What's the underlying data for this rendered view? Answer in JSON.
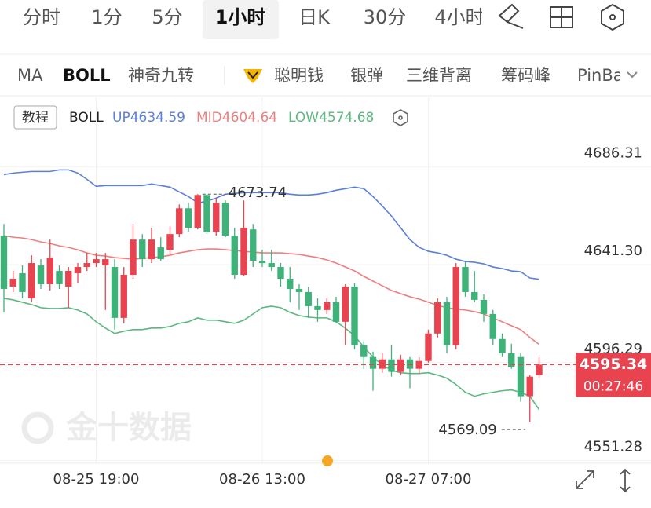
{
  "tabs": [
    "分时",
    "1分",
    "5分",
    "1小时",
    "日K",
    "30分",
    "4小时"
  ],
  "indicators": [
    "MA",
    "BOLL",
    "神奇九转",
    "聪明钱",
    "银弹",
    "三维背离",
    "筹码峰",
    "PinBar"
  ],
  "legend_button": "教程",
  "watermark": "金十数据",
  "countdown": "00:27:46",
  "chart_data": {
    "type": "candlestick",
    "categories": [
      null,
      null,
      null,
      null,
      null,
      null,
      null,
      null,
      null,
      null,
      "08-25 19:00",
      null,
      null,
      null,
      null,
      null,
      null,
      null,
      null,
      null,
      null,
      null,
      null,
      null,
      null,
      null,
      null,
      null,
      "08-26 13:00",
      null,
      null,
      null,
      null,
      null,
      null,
      null,
      null,
      null,
      null,
      null,
      null,
      null,
      null,
      null,
      null,
      null,
      "08-27 07:00",
      null,
      null,
      null,
      null,
      null,
      null,
      null,
      null,
      null,
      null,
      null,
      null
    ],
    "open": [
      4654.63,
      4631.23,
      4637.35,
      4625.83,
      4640.95,
      4632.31,
      4638.43,
      4631.23,
      4637.35,
      4640.23,
      4642.03,
      4640.95,
      4640.23,
      4616.83,
      4636.63,
      4652.83,
      4643.83,
      4649.23,
      4648.15,
      4655.35,
      4667.23,
      4658.23,
      4673.35,
      4656.43,
      4669.75,
      4654.63,
      4636.63,
      4657.51,
      4643.11,
      4642.03,
      4640.23,
      4634.83,
      4630.15,
      4628.71,
      4622.23,
      4620.43,
      4624.03,
      4615.03,
      4631.23,
      4604.23,
      4598.83,
      4593.43,
      4597.75,
      4591.99,
      4597.75,
      4593.43,
      4597.03,
      4609.63,
      4624.03,
      4604.23,
      4640.23,
      4628.71,
      4625.11,
      4618.63,
      4607.11,
      4600.63,
      4598.83,
      4580.83,
      4590.55
    ],
    "high": [
      4660.03,
      4638.43,
      4640.95,
      4645.63,
      4643.83,
      4652.83,
      4640.95,
      4640.23,
      4642.03,
      4646.71,
      4646.71,
      4646.71,
      4643.83,
      4640.23,
      4660.03,
      4655.35,
      4658.23,
      4653.91,
      4658.95,
      4669.03,
      4669.75,
      4673.74,
      4673.6,
      4671.91,
      4670.83,
      4658.23,
      4670.83,
      4660.03,
      4648.15,
      4648.15,
      4642.03,
      4640.23,
      4632.31,
      4631.23,
      4625.83,
      4625.83,
      4626.55,
      4632.31,
      4633.03,
      4606.03,
      4601.35,
      4600.63,
      4604.23,
      4599.91,
      4598.83,
      4598.83,
      4611.43,
      4625.83,
      4626.55,
      4642.03,
      4643.11,
      4638.43,
      4627.63,
      4620.43,
      4609.63,
      4604.95,
      4600.63,
      4590.55,
      4598.83
    ],
    "low": [
      4619.35,
      4628.71,
      4625.83,
      4624.03,
      4630.15,
      4629.43,
      4630.15,
      4621.51,
      4633.03,
      4638.43,
      4640.23,
      4620.43,
      4611.43,
      4614.31,
      4634.83,
      4640.23,
      4642.03,
      4643.11,
      4645.63,
      4653.91,
      4656.43,
      4657.51,
      4655.35,
      4654.63,
      4653.91,
      4634.83,
      4635.91,
      4640.23,
      4640.23,
      4638.43,
      4631.23,
      4624.03,
      4620.43,
      4616.83,
      4615.03,
      4618.63,
      4614.31,
      4604.23,
      4602.43,
      4593.43,
      4583.35,
      4591.63,
      4589.83,
      4590.55,
      4584.43,
      4591.63,
      4596.31,
      4607.83,
      4600.63,
      4602.43,
      4626.55,
      4624.03,
      4615.03,
      4604.23,
      4598.83,
      4593.43,
      4578.31,
      4569.09,
      4589.11
    ],
    "close": [
      4630.15,
      4634.83,
      4628.71,
      4642.03,
      4632.31,
      4644.55,
      4632.31,
      4638.43,
      4640.23,
      4642.03,
      4643.83,
      4643.83,
      4616.83,
      4636.63,
      4652.83,
      4643.83,
      4652.83,
      4643.83,
      4655.35,
      4667.23,
      4658.23,
      4673.35,
      4656.43,
      4669.75,
      4654.63,
      4636.63,
      4658.23,
      4643.11,
      4642.03,
      4640.23,
      4634.83,
      4630.15,
      4628.71,
      4622.23,
      4620.43,
      4624.03,
      4615.03,
      4631.23,
      4604.23,
      4598.83,
      4593.43,
      4597.75,
      4591.99,
      4597.75,
      4593.43,
      4597.03,
      4609.63,
      4624.03,
      4604.23,
      4640.23,
      4628.71,
      4625.11,
      4618.63,
      4607.11,
      4600.63,
      4594.15,
      4580.83,
      4589.83,
      4595.34
    ],
    "up_color": "#e8434f",
    "down_color": "#3fb27a",
    "series": [
      {
        "name": "UP",
        "color": "#5b80d9",
        "values": [
          4682.71,
          4683.43,
          4683.79,
          4684.15,
          4684.15,
          4684.15,
          4684.87,
          4684.87,
          4683.43,
          4680.55,
          4677.31,
          4677.67,
          4677.67,
          4677.67,
          4677.67,
          4677.67,
          4678.39,
          4677.67,
          4676.95,
          4674.79,
          4672.63,
          4669.75,
          4670.47,
          4671.91,
          4673.71,
          4674.07,
          4674.43,
          4674.43,
          4674.43,
          4674.43,
          4674.43,
          4673.71,
          4673.35,
          4673.35,
          4673.71,
          4674.43,
          4675.51,
          4676.23,
          4676.95,
          4676.23,
          4672.63,
          4668.31,
          4663.63,
          4658.23,
          4652.83,
          4649.23,
          4647.43,
          4646.71,
          4645.63,
          4643.83,
          4642.75,
          4642.39,
          4641.67,
          4640.23,
          4639.51,
          4638.43,
          4638.07,
          4635.19,
          4634.59
        ]
      },
      {
        "name": "MID",
        "color": "#ef7f7f",
        "values": [
          4654.63,
          4653.91,
          4653.55,
          4652.83,
          4651.75,
          4651.03,
          4649.95,
          4649.23,
          4648.15,
          4646.71,
          4645.63,
          4645.27,
          4644.55,
          4644.19,
          4643.83,
          4644.19,
          4644.55,
          4644.91,
          4645.63,
          4646.71,
          4647.43,
          4648.15,
          4648.51,
          4648.51,
          4648.15,
          4647.79,
          4647.43,
          4647.07,
          4646.71,
          4646.71,
          4646.71,
          4646.35,
          4645.99,
          4645.27,
          4644.55,
          4643.47,
          4642.03,
          4640.23,
          4638.43,
          4635.91,
          4633.75,
          4631.59,
          4629.43,
          4627.99,
          4626.55,
          4625.47,
          4624.03,
          4622.59,
          4621.51,
          4620.79,
          4620.43,
          4619.71,
          4618.63,
          4616.83,
          4615.03,
          4613.23,
          4611.43,
          4607.83,
          4604.64
        ]
      },
      {
        "name": "LOW",
        "color": "#5cb880",
        "values": [
          4625.83,
          4625.11,
          4624.03,
          4622.95,
          4621.51,
          4621.15,
          4621.15,
          4621.51,
          4620.43,
          4618.63,
          4615.03,
          4612.15,
          4609.63,
          4610.71,
          4611.43,
          4611.43,
          4612.15,
          4612.15,
          4612.87,
          4614.31,
          4615.03,
          4616.83,
          4615.75,
          4615.75,
          4615.03,
          4614.31,
          4615.75,
          4618.63,
          4621.51,
          4622.23,
          4621.51,
          4619.35,
          4617.91,
          4617.19,
          4616.83,
          4616.83,
          4615.03,
          4612.15,
          4608.55,
          4603.51,
          4598.83,
          4595.23,
          4592.71,
          4591.63,
          4591.27,
          4591.27,
          4591.63,
          4590.55,
          4589.11,
          4586.23,
          4582.63,
          4580.83,
          4581.91,
          4582.63,
          4583.35,
          4583.71,
          4582.63,
          4580.83,
          4574.68
        ]
      }
    ],
    "ylim": [
      4550,
      4698
    ],
    "yticks": [
      4551.28,
      4596.29,
      {
        "value": 4641.3,
        "label": "4641.30"
      },
      4686.31
    ],
    "grid": true
  }
}
